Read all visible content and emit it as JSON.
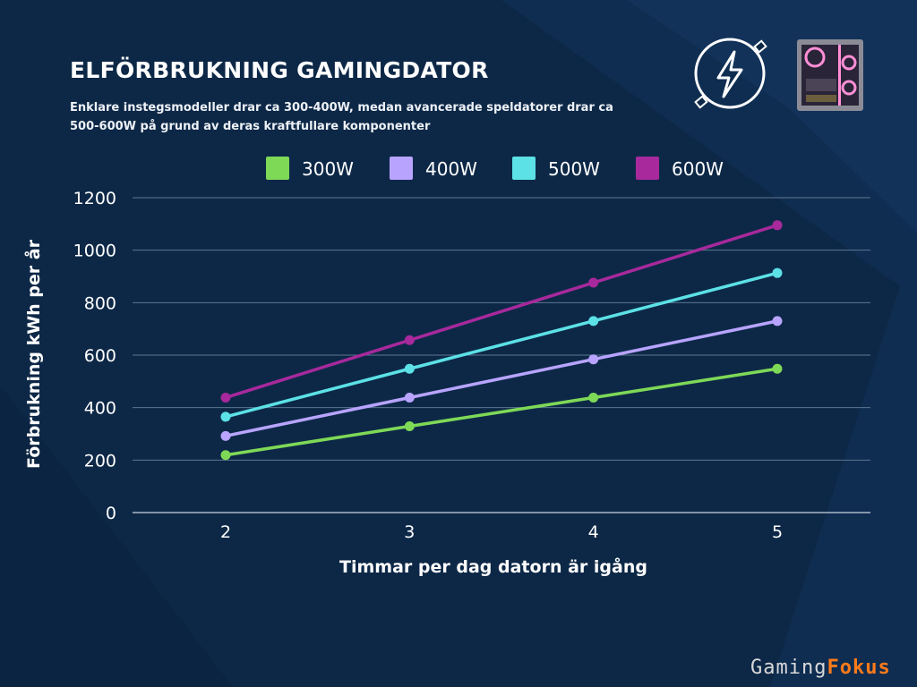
{
  "header": {
    "title": "ELFÖRBRUKNING GAMINGDATOR",
    "subtitle": "Enklare instegsmodeller drar ca 300-400W, medan avancerade speldatorer drar ca 500-600W på grund av deras kraftfullare komponenter"
  },
  "icons": [
    "lightning-plug-icon",
    "gaming-pc-case-icon"
  ],
  "brand": {
    "part1": "Gaming",
    "part2": "Fokus"
  },
  "colors": {
    "background": "#0d2847",
    "grid": "#5d7690",
    "axis": "#c9d3de"
  },
  "chart_data": {
    "type": "line",
    "title": "ELFÖRBRUKNING GAMINGDATOR",
    "xlabel": "Timmar per dag datorn är igång",
    "ylabel": "Förbrukning kWh per år",
    "x": [
      2,
      3,
      4,
      5
    ],
    "ylim": [
      0,
      1200
    ],
    "yticks": [
      0,
      200,
      400,
      600,
      800,
      1000,
      1200
    ],
    "grid": true,
    "legend_position": "top",
    "series": [
      {
        "name": "300W",
        "color": "#7ed957",
        "values": [
          219,
          329,
          438,
          548
        ]
      },
      {
        "name": "400W",
        "color": "#b8a4ff",
        "values": [
          292,
          438,
          584,
          730
        ]
      },
      {
        "name": "500W",
        "color": "#5ce1e6",
        "values": [
          365,
          548,
          730,
          913
        ]
      },
      {
        "name": "600W",
        "color": "#a7299c",
        "values": [
          438,
          657,
          876,
          1095
        ]
      }
    ]
  }
}
